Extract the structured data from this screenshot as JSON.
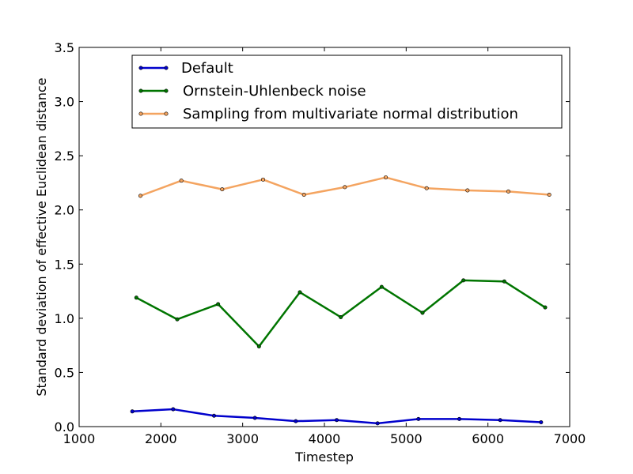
{
  "chart_data": {
    "type": "line",
    "xlabel": "Timestep",
    "ylabel": "Standard deviation of effective Euclidean distance",
    "xlim": [
      1000,
      7000
    ],
    "ylim": [
      0.0,
      3.5
    ],
    "xticks": [
      "1000",
      "2000",
      "3000",
      "4000",
      "5000",
      "6000",
      "7000"
    ],
    "yticks": [
      "0.0",
      "0.5",
      "1.0",
      "1.5",
      "2.0",
      "2.5",
      "3.0",
      "3.5"
    ],
    "grid": false,
    "legend_position": "top",
    "series": [
      {
        "name": "Default",
        "color": "#0000cc",
        "marker_fill": "#0000cc",
        "x": [
          1650,
          2150,
          2650,
          3150,
          3650,
          4150,
          4650,
          5150,
          5650,
          6150,
          6650
        ],
        "values": [
          0.14,
          0.16,
          0.1,
          0.08,
          0.05,
          0.06,
          0.03,
          0.07,
          0.07,
          0.06,
          0.04
        ]
      },
      {
        "name": "Ornstein-Uhlenbeck noise",
        "color": "#007500",
        "marker_fill": "#007500",
        "x": [
          1700,
          2200,
          2700,
          3200,
          3700,
          4200,
          4700,
          5200,
          5700,
          6200,
          6700
        ],
        "values": [
          1.19,
          0.99,
          1.13,
          0.74,
          1.24,
          1.01,
          1.29,
          1.05,
          1.35,
          1.34,
          1.1
        ]
      },
      {
        "name": "Sampling from multivariate normal distribution",
        "color": "#f4a460",
        "marker_fill": "#f4a460",
        "x": [
          1750,
          2250,
          2750,
          3250,
          3750,
          4250,
          4750,
          5250,
          5750,
          6250,
          6750
        ],
        "values": [
          2.13,
          2.27,
          2.19,
          2.28,
          2.14,
          2.21,
          2.3,
          2.2,
          2.18,
          2.17,
          2.14
        ]
      }
    ]
  }
}
